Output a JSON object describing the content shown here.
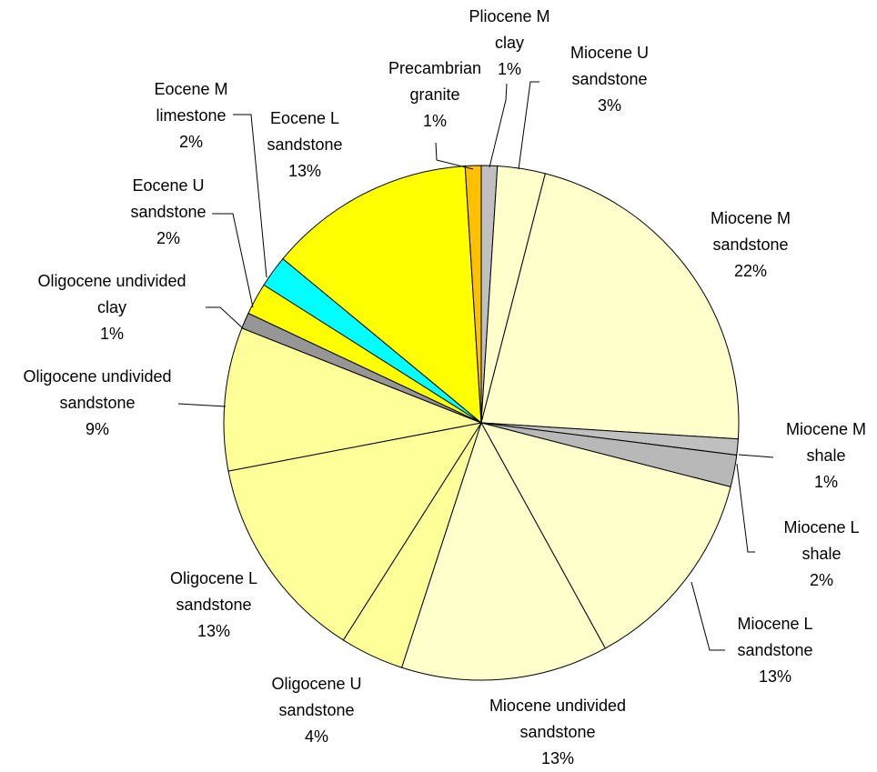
{
  "chart_data": {
    "type": "pie",
    "categories": [
      "Pliocene M clay",
      "Miocene U sandstone",
      "Miocene M sandstone",
      "Miocene M shale",
      "Miocene L shale",
      "Miocene L sandstone",
      "Miocene undivided sandstone",
      "Oligocene U sandstone",
      "Oligocene L sandstone",
      "Oligocene undivided sandstone",
      "Oligocene undivided clay",
      "Eocene U sandstone",
      "Eocene M limestone",
      "Eocene L sandstone",
      "Precambrian granite"
    ],
    "values": [
      1,
      3,
      22,
      1,
      2,
      13,
      13,
      4,
      13,
      9,
      1,
      2,
      2,
      13,
      1
    ],
    "value_labels": [
      "1%",
      "3%",
      "22%",
      "1%",
      "2%",
      "13%",
      "13%",
      "4%",
      "13%",
      "9%",
      "1%",
      "2%",
      "2%",
      "13%",
      "1%"
    ],
    "colors": [
      "#c0c0c0",
      "#ffffcc",
      "#ffffcc",
      "#c0c0c0",
      "#b8b8b8",
      "#ffffcc",
      "#ffffcc",
      "#ffff99",
      "#ffff99",
      "#ffff99",
      "#969696",
      "#ffff00",
      "#00ffff",
      "#ffff00",
      "#ffc000"
    ]
  }
}
